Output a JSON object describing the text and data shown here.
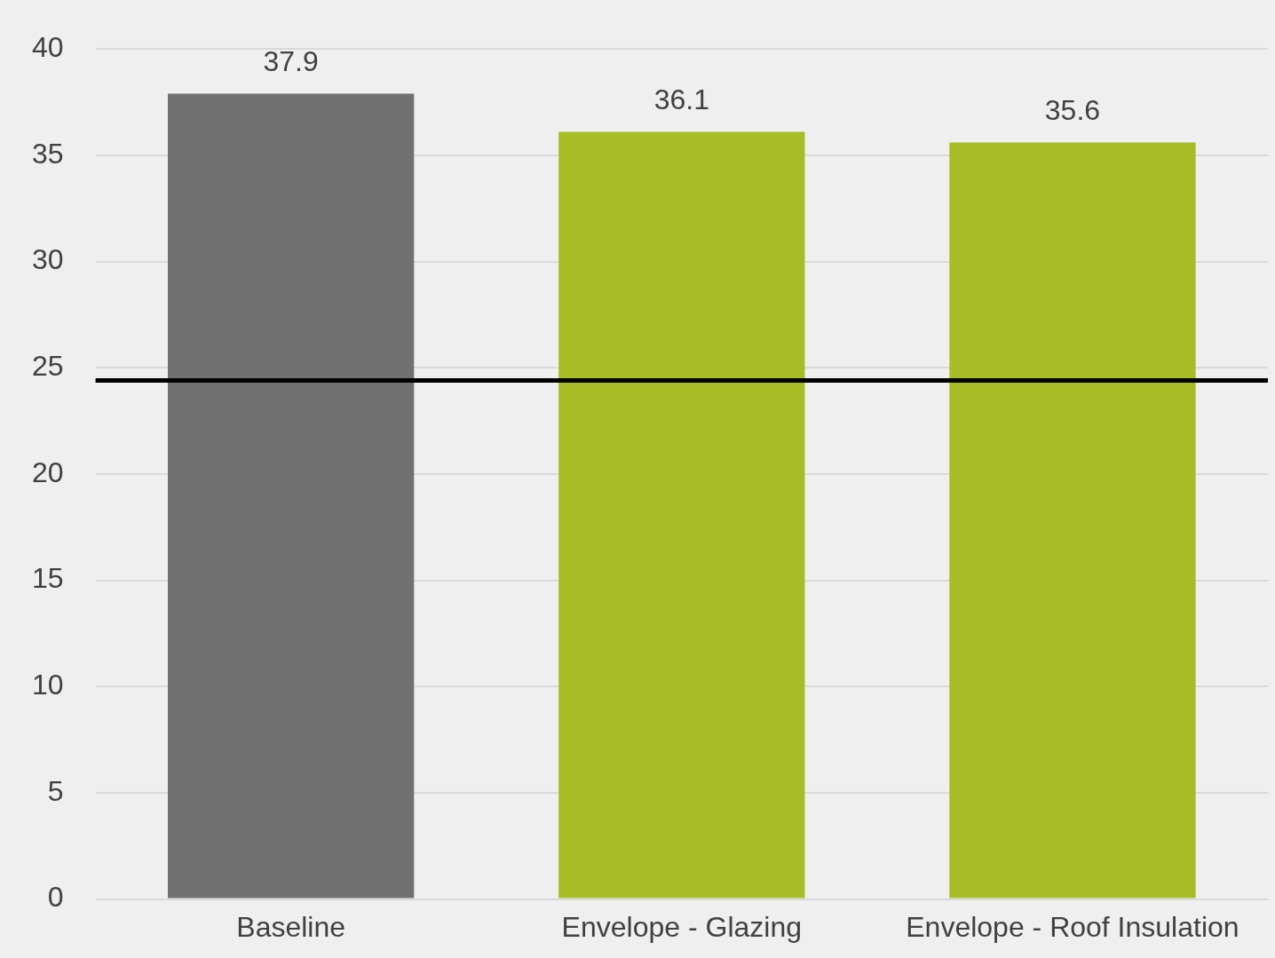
{
  "chart_data": {
    "type": "bar",
    "categories": [
      "Baseline",
      "Envelope - Glazing",
      "Envelope - Roof Insulation"
    ],
    "values": [
      37.9,
      36.1,
      35.6
    ],
    "colors": [
      "#717171",
      "#a8bc26",
      "#a8bc26"
    ],
    "ylim": [
      0,
      40
    ],
    "yticks": [
      0,
      5,
      10,
      15,
      20,
      25,
      30,
      35,
      40
    ],
    "grid": "y",
    "data_labels": true,
    "legend": false,
    "ref_lines": [
      {
        "axis": "y",
        "value": 24.4,
        "color": "#000000"
      }
    ]
  }
}
